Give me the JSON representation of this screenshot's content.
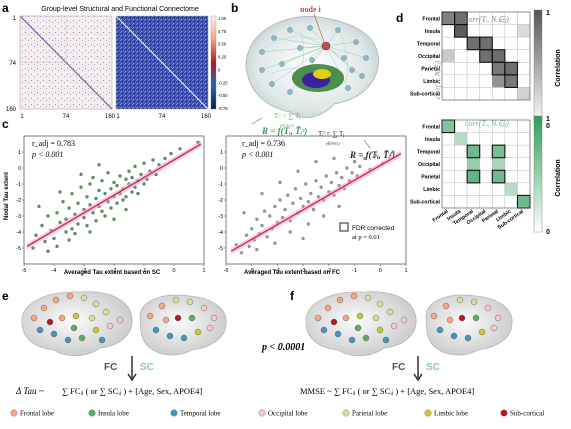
{
  "panels": {
    "a": {
      "letter": "a",
      "title": "Group-level Structural and Functional Connectome",
      "y_ticks": [
        "1",
        "74",
        "160"
      ],
      "x_ticks": [
        "1",
        "74",
        "160"
      ],
      "colorbar_ticks": [
        "1.00",
        "0.75",
        "0.50",
        "0.25",
        "0",
        "-0.25",
        "-0.50",
        "-0.75"
      ]
    },
    "b": {
      "letter": "b",
      "node_label": "node i",
      "sc_formula": "Tᵢˢ = ∑ Tⱼ",
      "fc_formula": "Tᵢᶠ = ∑ Tⱼ",
      "model_sc": "R = f(Tᵢ, T̃ᵢˢ)",
      "model_fc": "R = f(Tᵢ, T̃ᵢᶠ)",
      "sum_sc_sub": "j∈Nˢ(i)",
      "sum_fc_sub": "j∈Nᶠ(i)"
    },
    "c": {
      "letter": "c",
      "legend": "FDR corrected at p = 0.01",
      "legend_line1": "FDR corrected",
      "legend_line2": "at p = 0.01"
    },
    "d": {
      "letter": "d",
      "regions": [
        "Frontal",
        "Insula",
        "Temporal",
        "Occipital",
        "Parietal",
        "Limbic",
        "Sub-cortical"
      ],
      "top_formula_x": "corr(Tᵢ, Nᵢ∈ⱼ)",
      "top_formula_y": "corr(Tᵢ, Nᵢ∈ⱼ)",
      "bottom_formula": "corr(Tᵢ, Nᵢ∈ⱼ)",
      "colorbar_label": "Correlation",
      "colorbar_ticks": [
        "1",
        "0"
      ]
    },
    "e": {
      "letter": "e",
      "fc_label": "FC",
      "sc_label": "SC",
      "formula_lhs": "Δ Tau ~",
      "formula_rhs": "∑ FCᵢⱼ ( or ∑ SCᵢⱼ ) + [Age, Sex, APOE4]"
    },
    "f": {
      "letter": "f",
      "fc_label": "FC",
      "sc_label": "SC",
      "formula_lhs": "MMSE ~",
      "formula_rhs": "∑ FCᵢⱼ ( or ∑ SCᵢⱼ ) + [Age, Sex, APOE4]"
    },
    "p_value": "p < 0.0001"
  },
  "legend": [
    {
      "label": "Frontal lobe",
      "color": "#f4a582"
    },
    {
      "label": "Insula lobe",
      "color": "#5aae61"
    },
    {
      "label": "Temporal lobe",
      "color": "#4393c3"
    },
    {
      "label": "Occipital lobe",
      "color": "#f6c7c7"
    },
    {
      "label": "Parietal lobe",
      "color": "#e0d89a"
    },
    {
      "label": "Limbic lobe",
      "color": "#c8c832"
    },
    {
      "label": "Sub-cortical",
      "color": "#b2182b"
    }
  ],
  "chart_data": [
    {
      "type": "scatter",
      "title": "",
      "xlabel": "Averaged Tau extent based on SC",
      "ylabel": "Nodal Tau extent",
      "xlim": [
        -5,
        1
      ],
      "ylim": [
        -6,
        2
      ],
      "x_ticks": [
        -5,
        -4,
        -3,
        -2,
        -1,
        0,
        1
      ],
      "y_ticks": [
        -5,
        -4,
        -3,
        -2,
        -1,
        0,
        1
      ],
      "annotation": [
        "r_adj = 0.783",
        "p < 0.001"
      ],
      "point_color": "#4f7f4f",
      "fit": {
        "x": [
          -4.9,
          0.9
        ],
        "y": [
          -4.9,
          1.5
        ]
      },
      "points": [
        [
          -4.6,
          -4.2
        ],
        [
          -4.4,
          -3.6
        ],
        [
          -4.3,
          -4.6
        ],
        [
          -4.2,
          -3.0
        ],
        [
          -4.1,
          -3.9
        ],
        [
          -4.0,
          -4.4
        ],
        [
          -3.9,
          -2.8
        ],
        [
          -3.8,
          -3.4
        ],
        [
          -3.7,
          -2.1
        ],
        [
          -3.6,
          -4.0
        ],
        [
          -3.6,
          -3.2
        ],
        [
          -3.5,
          -2.5
        ],
        [
          -3.4,
          -3.8
        ],
        [
          -3.4,
          -1.6
        ],
        [
          -3.3,
          -2.9
        ],
        [
          -3.2,
          -3.5
        ],
        [
          -3.2,
          -2.2
        ],
        [
          -3.1,
          -1.2
        ],
        [
          -3.0,
          -3.1
        ],
        [
          -3.0,
          -2.6
        ],
        [
          -2.9,
          -1.8
        ],
        [
          -2.9,
          -3.6
        ],
        [
          -2.8,
          -2.3
        ],
        [
          -2.8,
          -1.0
        ],
        [
          -2.7,
          -2.8
        ],
        [
          -2.7,
          -0.6
        ],
        [
          -2.6,
          -1.9
        ],
        [
          -2.6,
          -3.3
        ],
        [
          -2.5,
          -2.4
        ],
        [
          -2.5,
          -1.4
        ],
        [
          -2.4,
          -0.8
        ],
        [
          -2.4,
          -2.7
        ],
        [
          -2.3,
          -1.6
        ],
        [
          -2.3,
          -3.0
        ],
        [
          -2.2,
          -2.1
        ],
        [
          -2.2,
          -0.3
        ],
        [
          -2.1,
          -1.3
        ],
        [
          -2.1,
          -2.5
        ],
        [
          -2.0,
          -1.8
        ],
        [
          -2.0,
          -0.9
        ],
        [
          -1.9,
          -2.2
        ],
        [
          -1.9,
          -1.1
        ],
        [
          -1.8,
          -1.6
        ],
        [
          -1.8,
          -0.5
        ],
        [
          -1.7,
          -2.0
        ],
        [
          -1.7,
          -1.3
        ],
        [
          -1.6,
          -0.7
        ],
        [
          -1.6,
          -1.8
        ],
        [
          -1.5,
          -1.0
        ],
        [
          -1.5,
          -0.2
        ],
        [
          -1.4,
          -1.5
        ],
        [
          -1.4,
          -0.6
        ],
        [
          -1.3,
          -1.2
        ],
        [
          -1.3,
          0.1
        ],
        [
          -1.2,
          -0.8
        ],
        [
          -1.2,
          -1.6
        ],
        [
          -1.1,
          -0.4
        ],
        [
          -1.0,
          -1.0
        ],
        [
          -1.0,
          0.3
        ],
        [
          -0.9,
          -0.7
        ],
        [
          -0.8,
          -0.2
        ],
        [
          -0.7,
          0.5
        ],
        [
          -0.6,
          -0.4
        ],
        [
          -0.5,
          0.2
        ],
        [
          -0.3,
          0.6
        ],
        [
          -0.1,
          0.9
        ],
        [
          0.2,
          1.2
        ],
        [
          0.8,
          1.6
        ],
        [
          -4.7,
          -5.0
        ],
        [
          -3.9,
          -4.9
        ],
        [
          -3.5,
          -4.5
        ],
        [
          -2.8,
          -4.0
        ],
        [
          -4.5,
          -2.4
        ],
        [
          -3.8,
          -1.5
        ],
        [
          -3.1,
          -0.4
        ],
        [
          -2.5,
          0.2
        ],
        [
          -4.2,
          -5.2
        ],
        [
          -3.3,
          -4.1
        ],
        [
          -2.0,
          -3.2
        ],
        [
          -1.6,
          -2.6
        ]
      ]
    },
    {
      "type": "scatter",
      "title": "",
      "xlabel": "Averaged Tau extent based on FC",
      "ylabel": "",
      "xlim": [
        -6,
        1
      ],
      "ylim": [
        -6,
        2
      ],
      "x_ticks": [
        -6,
        -5,
        -4,
        -3,
        -2,
        -1,
        0,
        1
      ],
      "y_ticks": [
        -5,
        -4,
        -3,
        -2,
        -1,
        0,
        1
      ],
      "annotation": [
        "r_adj = 0.736",
        "p < 0.001"
      ],
      "point_color": "#8a8a8a",
      "fit": {
        "x": [
          -5.8,
          0.8
        ],
        "y": [
          -5.2,
          0.9
        ]
      },
      "points": [
        [
          -5.6,
          -4.8
        ],
        [
          -5.4,
          -5.3
        ],
        [
          -5.2,
          -4.2
        ],
        [
          -5.1,
          -4.9
        ],
        [
          -5.0,
          -3.8
        ],
        [
          -4.9,
          -4.5
        ],
        [
          -4.8,
          -3.2
        ],
        [
          -4.7,
          -4.1
        ],
        [
          -4.6,
          -3.6
        ],
        [
          -4.5,
          -2.7
        ],
        [
          -4.4,
          -4.3
        ],
        [
          -4.3,
          -3.0
        ],
        [
          -4.2,
          -3.8
        ],
        [
          -4.1,
          -2.4
        ],
        [
          -4.0,
          -3.4
        ],
        [
          -3.9,
          -2.0
        ],
        [
          -3.8,
          -3.1
        ],
        [
          -3.7,
          -2.6
        ],
        [
          -3.6,
          -1.7
        ],
        [
          -3.5,
          -3.3
        ],
        [
          -3.4,
          -2.2
        ],
        [
          -3.3,
          -1.3
        ],
        [
          -3.2,
          -2.8
        ],
        [
          -3.1,
          -1.9
        ],
        [
          -3.0,
          -2.4
        ],
        [
          -2.9,
          -1.0
        ],
        [
          -2.8,
          -2.1
        ],
        [
          -2.7,
          -1.6
        ],
        [
          -2.6,
          -2.6
        ],
        [
          -2.5,
          -0.8
        ],
        [
          -2.4,
          -1.8
        ],
        [
          -2.3,
          -1.2
        ],
        [
          -2.2,
          -2.0
        ],
        [
          -2.1,
          -0.5
        ],
        [
          -2.0,
          -1.5
        ],
        [
          -1.9,
          -0.9
        ],
        [
          -1.8,
          -1.7
        ],
        [
          -1.7,
          -0.3
        ],
        [
          -1.6,
          -1.1
        ],
        [
          -1.5,
          -0.6
        ],
        [
          -1.4,
          -1.3
        ],
        [
          -1.3,
          0.0
        ],
        [
          -1.2,
          -0.8
        ],
        [
          -1.1,
          -0.3
        ],
        [
          -1.0,
          0.4
        ],
        [
          -0.9,
          -0.5
        ],
        [
          -0.8,
          0.1
        ],
        [
          -0.6,
          0.6
        ],
        [
          -0.4,
          -0.1
        ],
        [
          -0.2,
          0.8
        ],
        [
          0.1,
          0.3
        ],
        [
          0.5,
          1.0
        ],
        [
          -5.3,
          -2.8
        ],
        [
          -4.6,
          -1.6
        ],
        [
          -3.9,
          -0.9
        ],
        [
          -3.2,
          -0.2
        ],
        [
          -4.8,
          -5.1
        ],
        [
          -4.1,
          -4.7
        ],
        [
          -3.5,
          -4.0
        ],
        [
          -2.8,
          -3.5
        ],
        [
          -2.2,
          -3.0
        ],
        [
          -1.6,
          -2.4
        ],
        [
          -3.0,
          -4.4
        ],
        [
          -2.5,
          0.4
        ],
        [
          -1.8,
          0.6
        ]
      ]
    },
    {
      "type": "heatmap",
      "title": "",
      "xlabel": "",
      "ylabel": "",
      "categories": [
        "Frontal",
        "Insula",
        "Temporal",
        "Occipital",
        "Parietal",
        "Limbic",
        "Sub-cortical"
      ],
      "colorscale": "grey",
      "values": [
        [
          0.7,
          0.8,
          0,
          0,
          0,
          0,
          0
        ],
        [
          0,
          0.9,
          0,
          0,
          0,
          0,
          0.2
        ],
        [
          0,
          0,
          0.8,
          0.8,
          0,
          0,
          0
        ],
        [
          0.3,
          0,
          0,
          0.8,
          0.8,
          0,
          0
        ],
        [
          0,
          0,
          0,
          0,
          0.75,
          0.8,
          0
        ],
        [
          0,
          0,
          0,
          0,
          0.6,
          0.75,
          0
        ],
        [
          0,
          0,
          0,
          0,
          0,
          0,
          0.25
        ]
      ],
      "highlighted": [
        [
          0,
          0
        ],
        [
          0,
          1
        ],
        [
          1,
          1
        ],
        [
          2,
          2
        ],
        [
          2,
          3
        ],
        [
          3,
          3
        ],
        [
          3,
          4
        ],
        [
          4,
          4
        ],
        [
          4,
          5
        ],
        [
          5,
          5
        ]
      ]
    },
    {
      "type": "heatmap",
      "title": "",
      "xlabel": "",
      "ylabel": "",
      "categories": [
        "Frontal",
        "Insula",
        "Temporal",
        "Occipital",
        "Parietal",
        "Limbic",
        "Sub-cortical"
      ],
      "colorscale": "green",
      "values": [
        [
          0.6,
          0,
          0,
          0,
          0,
          0,
          0
        ],
        [
          0,
          0.35,
          0,
          0,
          0,
          0,
          0
        ],
        [
          0,
          0,
          0.7,
          0,
          0.65,
          0,
          0
        ],
        [
          0,
          0,
          0.5,
          0,
          0.4,
          0,
          0
        ],
        [
          0,
          0,
          0.75,
          0,
          0.7,
          0,
          0
        ],
        [
          0,
          0,
          0,
          0,
          0,
          0.35,
          0
        ],
        [
          0,
          0,
          0,
          0,
          0,
          0,
          0.7
        ]
      ],
      "highlighted": [
        [
          0,
          0
        ],
        [
          2,
          2
        ],
        [
          2,
          4
        ],
        [
          4,
          2
        ],
        [
          4,
          4
        ],
        [
          6,
          6
        ]
      ]
    }
  ]
}
